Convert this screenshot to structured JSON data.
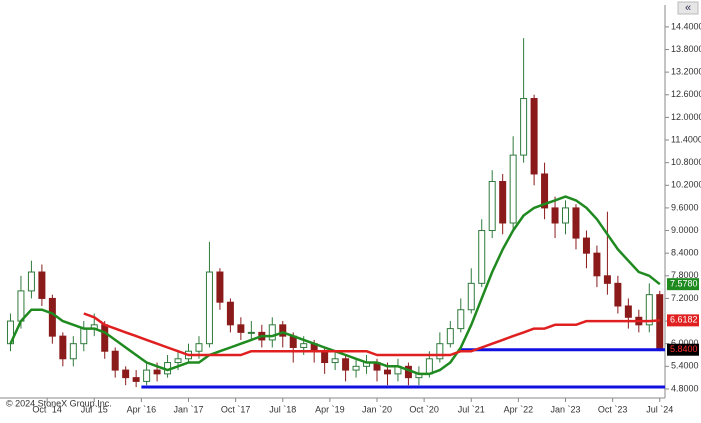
{
  "chart_data": {
    "type": "candlestick",
    "copyright": "© 2024 StoneX Group Inc.",
    "button": "«",
    "xlim": [
      "2014-01",
      "2024-08"
    ],
    "ylim": [
      4.56,
      14.98
    ],
    "yticks": [
      {
        "value": 4.8,
        "label": "4.8000"
      },
      {
        "value": 5.4,
        "label": "5.4000"
      },
      {
        "value": 6.0,
        "label": "6.0000"
      },
      {
        "value": 6.6,
        "label": "6.6000"
      },
      {
        "value": 7.2,
        "label": "7.2000"
      },
      {
        "value": 7.8,
        "label": "7.8000"
      },
      {
        "value": 8.4,
        "label": "8.4000"
      },
      {
        "value": 9.0,
        "label": "9.0000"
      },
      {
        "value": 9.6,
        "label": "9.6000"
      },
      {
        "value": 10.2,
        "label": "10.2000"
      },
      {
        "value": 10.8,
        "label": "10.8000"
      },
      {
        "value": 11.4,
        "label": "11.4000"
      },
      {
        "value": 12.0,
        "label": "12.0000"
      },
      {
        "value": 12.6,
        "label": "12.6000"
      },
      {
        "value": 13.2,
        "label": "13.2000"
      },
      {
        "value": 13.8,
        "label": "13.8000"
      },
      {
        "value": 14.4,
        "label": "14.4000"
      }
    ],
    "xticks": [
      {
        "value": "2014-10",
        "label": "Oct `14"
      },
      {
        "value": "2015-07",
        "label": "Jul `15"
      },
      {
        "value": "2016-04",
        "label": "Apr `16"
      },
      {
        "value": "2017-01",
        "label": "Jan `17"
      },
      {
        "value": "2017-10",
        "label": "Oct `17"
      },
      {
        "value": "2018-07",
        "label": "Jul `18"
      },
      {
        "value": "2019-04",
        "label": "Apr `19"
      },
      {
        "value": "2020-01",
        "label": "Jan `20"
      },
      {
        "value": "2020-10",
        "label": "Oct `20"
      },
      {
        "value": "2021-07",
        "label": "Jul `21"
      },
      {
        "value": "2022-04",
        "label": "Apr `22"
      },
      {
        "value": "2023-01",
        "label": "Jan `23"
      },
      {
        "value": "2023-10",
        "label": "Oct `23"
      },
      {
        "value": "2024-07",
        "label": "Jul `24"
      }
    ],
    "up_color": "#2f7a3c",
    "down_color": "#8b1a1a",
    "x": [
      "2014-03",
      "2014-05",
      "2014-07",
      "2014-09",
      "2014-11",
      "2015-01",
      "2015-03",
      "2015-05",
      "2015-07",
      "2015-09",
      "2015-11",
      "2016-01",
      "2016-03",
      "2016-05",
      "2016-07",
      "2016-09",
      "2016-11",
      "2017-01",
      "2017-03",
      "2017-05",
      "2017-07",
      "2017-09",
      "2017-11",
      "2018-01",
      "2018-03",
      "2018-05",
      "2018-07",
      "2018-09",
      "2018-11",
      "2019-01",
      "2019-03",
      "2019-05",
      "2019-07",
      "2019-09",
      "2019-11",
      "2020-01",
      "2020-03",
      "2020-05",
      "2020-07",
      "2020-09",
      "2020-11",
      "2021-01",
      "2021-03",
      "2021-05",
      "2021-07",
      "2021-09",
      "2021-11",
      "2022-01",
      "2022-03",
      "2022-05",
      "2022-07",
      "2022-09",
      "2022-11",
      "2023-01",
      "2023-03",
      "2023-05",
      "2023-07",
      "2023-09",
      "2023-11",
      "2024-01",
      "2024-03",
      "2024-05",
      "2024-07"
    ],
    "open": [
      6.0,
      6.6,
      7.4,
      7.9,
      7.2,
      6.2,
      5.6,
      6.0,
      6.4,
      6.5,
      5.8,
      5.3,
      5.1,
      5.0,
      5.3,
      5.2,
      5.5,
      5.6,
      5.8,
      6.0,
      7.9,
      7.1,
      6.5,
      6.3,
      6.3,
      6.1,
      6.5,
      6.2,
      5.9,
      6.0,
      5.8,
      5.5,
      5.6,
      5.3,
      5.4,
      5.5,
      5.3,
      5.2,
      5.4,
      5.1,
      5.2,
      5.6,
      6.0,
      6.4,
      6.9,
      7.6,
      9.0,
      10.3,
      9.2,
      11.0,
      12.5,
      10.5,
      9.6,
      9.2,
      9.6,
      8.8,
      8.4,
      7.8,
      7.6,
      7.0,
      6.7,
      6.5,
      7.3
    ],
    "high": [
      6.8,
      7.8,
      8.2,
      8.1,
      7.3,
      6.3,
      6.2,
      6.6,
      6.8,
      6.6,
      5.9,
      5.4,
      5.3,
      5.5,
      5.5,
      5.7,
      5.8,
      6.0,
      6.2,
      8.7,
      8.0,
      7.2,
      6.7,
      6.6,
      6.5,
      6.7,
      6.6,
      6.3,
      6.2,
      6.1,
      5.9,
      5.8,
      5.7,
      5.6,
      5.7,
      5.6,
      5.5,
      5.6,
      5.5,
      5.4,
      5.8,
      6.3,
      6.6,
      7.2,
      8.0,
      9.3,
      10.6,
      10.5,
      11.5,
      14.1,
      12.6,
      10.8,
      9.9,
      9.8,
      9.7,
      9.0,
      8.6,
      9.5,
      7.8,
      7.2,
      6.9,
      7.6,
      7.4
    ],
    "low": [
      5.8,
      6.4,
      7.2,
      7.0,
      6.0,
      5.4,
      5.4,
      5.8,
      6.2,
      5.6,
      5.1,
      4.9,
      4.85,
      4.9,
      5.0,
      5.1,
      5.3,
      5.5,
      5.6,
      5.9,
      6.9,
      6.3,
      6.1,
      6.1,
      5.9,
      5.9,
      5.9,
      5.5,
      5.7,
      5.5,
      5.2,
      5.3,
      5.0,
      5.1,
      5.2,
      5.0,
      4.9,
      5.0,
      4.9,
      4.9,
      5.1,
      5.5,
      5.9,
      6.3,
      6.8,
      7.5,
      8.8,
      8.9,
      9.0,
      10.8,
      10.2,
      9.3,
      8.8,
      8.9,
      8.5,
      8.0,
      7.5,
      7.3,
      6.8,
      6.4,
      6.3,
      6.3,
      5.8
    ],
    "close": [
      6.6,
      7.4,
      7.9,
      7.2,
      6.2,
      5.6,
      6.0,
      6.4,
      6.5,
      5.8,
      5.3,
      5.1,
      5.0,
      5.3,
      5.2,
      5.5,
      5.6,
      5.8,
      6.0,
      7.9,
      7.1,
      6.5,
      6.3,
      6.3,
      6.1,
      6.5,
      6.2,
      5.9,
      6.0,
      5.8,
      5.5,
      5.6,
      5.3,
      5.4,
      5.5,
      5.3,
      5.2,
      5.4,
      5.1,
      5.2,
      5.6,
      6.0,
      6.4,
      6.9,
      7.6,
      9.0,
      10.3,
      9.2,
      11.0,
      12.5,
      10.5,
      9.6,
      9.2,
      9.6,
      8.8,
      8.4,
      7.8,
      7.6,
      7.0,
      6.7,
      6.5,
      7.3,
      5.84
    ],
    "series": [
      {
        "color": "#1f8a1f",
        "values": [
          6.0,
          6.6,
          6.9,
          6.9,
          6.8,
          6.6,
          6.5,
          6.4,
          6.4,
          6.3,
          6.1,
          5.9,
          5.7,
          5.5,
          5.4,
          5.3,
          5.4,
          5.5,
          5.5,
          5.7,
          5.8,
          5.9,
          6.0,
          6.1,
          6.2,
          6.2,
          6.3,
          6.2,
          6.1,
          6.0,
          5.9,
          5.8,
          5.7,
          5.6,
          5.5,
          5.5,
          5.4,
          5.4,
          5.3,
          5.2,
          5.2,
          5.3,
          5.5,
          5.9,
          6.5,
          7.2,
          7.9,
          8.5,
          9.0,
          9.4,
          9.6,
          9.7,
          9.8,
          9.9,
          9.8,
          9.6,
          9.3,
          8.9,
          8.5,
          8.2,
          7.9,
          7.8,
          7.578
        ]
      },
      {
        "color": "#e02020",
        "values": [
          null,
          null,
          null,
          null,
          null,
          null,
          null,
          6.8,
          6.7,
          6.5,
          6.4,
          6.3,
          6.2,
          6.1,
          6.0,
          5.9,
          5.8,
          5.7,
          5.7,
          5.7,
          5.7,
          5.7,
          5.7,
          5.8,
          5.8,
          5.8,
          5.8,
          5.8,
          5.8,
          5.8,
          5.8,
          5.8,
          5.8,
          5.8,
          5.8,
          5.7,
          5.7,
          5.7,
          5.7,
          5.7,
          5.7,
          5.7,
          5.7,
          5.8,
          5.8,
          5.9,
          6.0,
          6.1,
          6.2,
          6.3,
          6.4,
          6.4,
          6.5,
          6.5,
          6.5,
          6.6,
          6.6,
          6.6,
          6.6,
          6.6,
          6.6,
          6.6,
          6.6182
        ]
      }
    ],
    "levels": [
      {
        "value": 5.84,
        "from": "2021-05",
        "color": "#1010e0"
      },
      {
        "value": 4.85,
        "from": "2016-04",
        "color": "#1010e0"
      }
    ],
    "end_labels": [
      {
        "value": 7.578,
        "label": "7.5780",
        "color": "#1f8a1f",
        "text_color": "#ffffff"
      },
      {
        "value": 6.6182,
        "label": "6.6182",
        "color": "#e02020",
        "text_color": "#ffffff"
      },
      {
        "value": 5.84,
        "label": "5.8400",
        "color": "#000000",
        "text_color": "#ff3030"
      }
    ]
  }
}
